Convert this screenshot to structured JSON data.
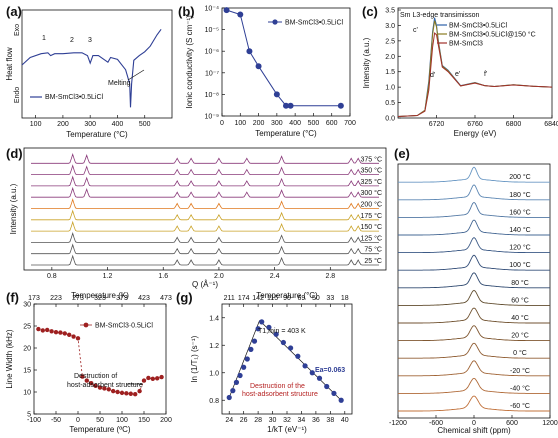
{
  "figure": {
    "panels": {
      "a": "(a)",
      "b": "(b)",
      "c": "(c)",
      "d": "(d)",
      "e": "(e)",
      "f": "(f)",
      "g": "(g)"
    }
  },
  "colors": {
    "navy": "#2f3f95",
    "pink": "#c7337a",
    "orange": "#d99a25",
    "gray": "#555555",
    "red": "#9e2020",
    "blue": "#2d62a8",
    "brown": "#8a4a2a"
  },
  "chart_data": [
    {
      "panel": "a",
      "type": "line",
      "xlabel": "Temperature (°C)",
      "ylabel": "Heat flow",
      "exo_label": "Exo",
      "endo_label": "Endo",
      "xlim": [
        50,
        600
      ],
      "xticks": [
        "100",
        "200",
        "300",
        "400",
        "500"
      ],
      "series": [
        {
          "name": "BM-SmCl3•0.5LiCl",
          "x": [
            50,
            80,
            120,
            145,
            155,
            170,
            200,
            240,
            270,
            290,
            300,
            310,
            330,
            355,
            365,
            375,
            400,
            430,
            445,
            448,
            452,
            460,
            480,
            500,
            520,
            545,
            560
          ],
          "y": [
            0.5,
            0.58,
            0.62,
            0.63,
            0.6,
            0.62,
            0.62,
            0.63,
            0.63,
            0.6,
            0.52,
            0.6,
            0.6,
            0.55,
            0.53,
            0.58,
            0.56,
            0.45,
            0.3,
            0.05,
            0.3,
            0.55,
            0.6,
            0.64,
            0.7,
            0.82,
            0.88
          ]
        }
      ],
      "annotations": [
        "1",
        "2",
        "3",
        "Melting"
      ]
    },
    {
      "panel": "b",
      "type": "line",
      "xlabel": "Temperature (°C)",
      "ylabel": "Ionic conductivity (S cm⁻¹)",
      "yscale": "log",
      "xlim": [
        0,
        700
      ],
      "ylim": [
        1e-09,
        0.0001
      ],
      "xticks": [
        "0",
        "100",
        "200",
        "300",
        "400",
        "500",
        "600",
        "700"
      ],
      "yticks": [
        "10⁻⁴",
        "10⁻⁵",
        "10⁻⁶",
        "10⁻⁷",
        "10⁻⁸",
        "10⁻⁹"
      ],
      "series": [
        {
          "name": "BM-SmCl3•0.5LiCl",
          "x": [
            25,
            100,
            150,
            200,
            300,
            350,
            375,
            650
          ],
          "y": [
            8e-05,
            5e-05,
            1e-06,
            2e-07,
            1e-08,
            3e-09,
            3e-09,
            3e-09
          ]
        }
      ]
    },
    {
      "panel": "c",
      "type": "line",
      "title": "Sm L3-edge transimisson",
      "xlabel": "Energy (eV)",
      "ylabel": "Intensity (a.u.)",
      "xlim": [
        6680,
        6840
      ],
      "ylim": [
        0,
        3.5
      ],
      "xticks": [
        "6720",
        "6760",
        "6800",
        "6840"
      ],
      "yticks": [
        "0.0",
        "0.5",
        "1.0",
        "1.5",
        "2.0",
        "2.5",
        "3.0",
        "3.5"
      ],
      "series": [
        {
          "name": "BM-SmCl3•0.5LiCl",
          "x": [
            6680,
            6700,
            6708,
            6712,
            6716,
            6718,
            6720,
            6722,
            6726,
            6732,
            6745,
            6760,
            6770,
            6780,
            6800,
            6820,
            6840
          ],
          "y": [
            0.05,
            0.08,
            0.25,
            1.2,
            2.8,
            3.25,
            3.0,
            2.5,
            1.7,
            1.55,
            1.05,
            1.15,
            1.05,
            1.02,
            1.08,
            1.03,
            1.0
          ]
        },
        {
          "name": "BM-SmCl3•0.5LiCl@150 °C",
          "x": [
            6680,
            6700,
            6708,
            6712,
            6716,
            6718,
            6720,
            6722,
            6726,
            6732,
            6745,
            6760,
            6770,
            6780,
            6800,
            6820,
            6840
          ],
          "y": [
            0.05,
            0.08,
            0.25,
            1.1,
            2.7,
            3.15,
            2.95,
            2.45,
            1.68,
            1.53,
            1.04,
            1.14,
            1.05,
            1.02,
            1.08,
            1.03,
            1.0
          ]
        },
        {
          "name": "BM-SmCl3",
          "x": [
            6680,
            6700,
            6708,
            6712,
            6716,
            6718,
            6720,
            6722,
            6726,
            6732,
            6745,
            6760,
            6770,
            6780,
            6800,
            6820,
            6840
          ],
          "y": [
            0.05,
            0.08,
            0.22,
            0.9,
            2.3,
            2.75,
            2.7,
            2.35,
            1.65,
            1.5,
            1.04,
            1.13,
            1.05,
            1.02,
            1.07,
            1.03,
            1.0
          ]
        }
      ],
      "annotations": [
        "c'",
        "d'",
        "e'",
        "f'"
      ]
    },
    {
      "panel": "d",
      "type": "line",
      "xlabel": "Q (Å⁻¹)",
      "ylabel": "Intensity (a.u.)",
      "xlim": [
        0.6,
        3.2
      ],
      "xticks": [
        "0.8",
        "1.2",
        "1.6",
        "2.0",
        "2.4",
        "2.8"
      ],
      "series_labels": [
        "25 °C",
        "75 °C",
        "125 °C",
        "150 °C",
        "175 °C",
        "200 °C",
        "300 °C",
        "325 °C",
        "350 °C",
        "375 °C"
      ],
      "peaks_q": [
        0.95,
        1.7,
        1.8,
        2.0,
        2.45,
        2.95,
        3.0
      ]
    },
    {
      "panel": "e",
      "type": "line",
      "xlabel": "Chemical shift (ppm)",
      "xlim": [
        -1200,
        1200
      ],
      "xticks": [
        "-1200",
        "-600",
        "0",
        "600",
        "1200"
      ],
      "series_labels": [
        "-60 °C",
        "-40 °C",
        "-20 °C",
        "0 °C",
        "20 °C",
        "40 °C",
        "60 °C",
        "80 °C",
        "100 °C",
        "120 °C",
        "140 °C",
        "160 °C",
        "180 °C",
        "200 °C"
      ]
    },
    {
      "panel": "f",
      "type": "scatter",
      "xlabel": "Temperature (ºC)",
      "ylabel": "Line Width (kHz)",
      "top_xlabel": "Temperature (K)",
      "xlim": [
        -100,
        200
      ],
      "ylim": [
        5,
        30
      ],
      "xticks": [
        "-100",
        "-50",
        "0",
        "50",
        "100",
        "150",
        "200"
      ],
      "top_xticks": [
        "173",
        "223",
        "273",
        "323",
        "373",
        "423",
        "473"
      ],
      "yticks": [
        "5",
        "10",
        "15",
        "20",
        "25",
        "30"
      ],
      "series": [
        {
          "name": "BM-SmCl3·0.5LiCl",
          "x": [
            -90,
            -80,
            -70,
            -60,
            -50,
            -40,
            -30,
            -20,
            -10,
            0,
            10,
            20,
            30,
            40,
            50,
            60,
            70,
            80,
            90,
            100,
            110,
            120,
            130,
            140,
            150,
            160,
            170,
            180,
            190
          ],
          "y": [
            24.3,
            24.0,
            24.1,
            23.8,
            23.6,
            23.5,
            23.3,
            23.0,
            22.6,
            22.2,
            13.5,
            12.6,
            12.0,
            11.4,
            11.0,
            10.8,
            10.6,
            10.2,
            10.0,
            9.8,
            9.7,
            9.6,
            9.5,
            10.2,
            12.6,
            13.2,
            13.0,
            13.1,
            13.4
          ]
        }
      ],
      "annotation": "Destruction of host-adsorbent structure"
    },
    {
      "panel": "g",
      "type": "scatter",
      "xlabel": "1/kT (eV⁻¹)",
      "ylabel": "ln (1/T₁) (s⁻¹)",
      "top_xlabel": "Temperature (°C)",
      "xlim": [
        23,
        41
      ],
      "ylim": [
        0.7,
        1.5
      ],
      "xticks": [
        "24",
        "26",
        "28",
        "30",
        "32",
        "34",
        "36",
        "38",
        "40"
      ],
      "top_xticks": [
        "211",
        "174",
        "142",
        "115",
        "90",
        "69",
        "50",
        "33",
        "18"
      ],
      "yticks": [
        "0.8",
        "1.0",
        "1.2",
        "1.4"
      ],
      "series": [
        {
          "name": "ln(1/T1)",
          "x": [
            24.0,
            24.5,
            25.0,
            25.5,
            26.0,
            26.5,
            27.0,
            27.5,
            28.0,
            28.5,
            29.5,
            30.5,
            31.5,
            32.5,
            33.5,
            34.5,
            35.5,
            36.5,
            37.5,
            38.5,
            39.5
          ],
          "y": [
            0.82,
            0.87,
            0.93,
            0.98,
            1.04,
            1.1,
            1.17,
            1.23,
            1.32,
            1.37,
            1.33,
            1.28,
            1.22,
            1.18,
            1.12,
            1.05,
            1.0,
            0.96,
            0.9,
            0.85,
            0.8
          ]
        }
      ],
      "annotations": {
        "tmax": "T1,min = 403 K",
        "destruction": "Destruction of the host-adsorbent structure",
        "ea": "Ea=0.063"
      }
    }
  ]
}
